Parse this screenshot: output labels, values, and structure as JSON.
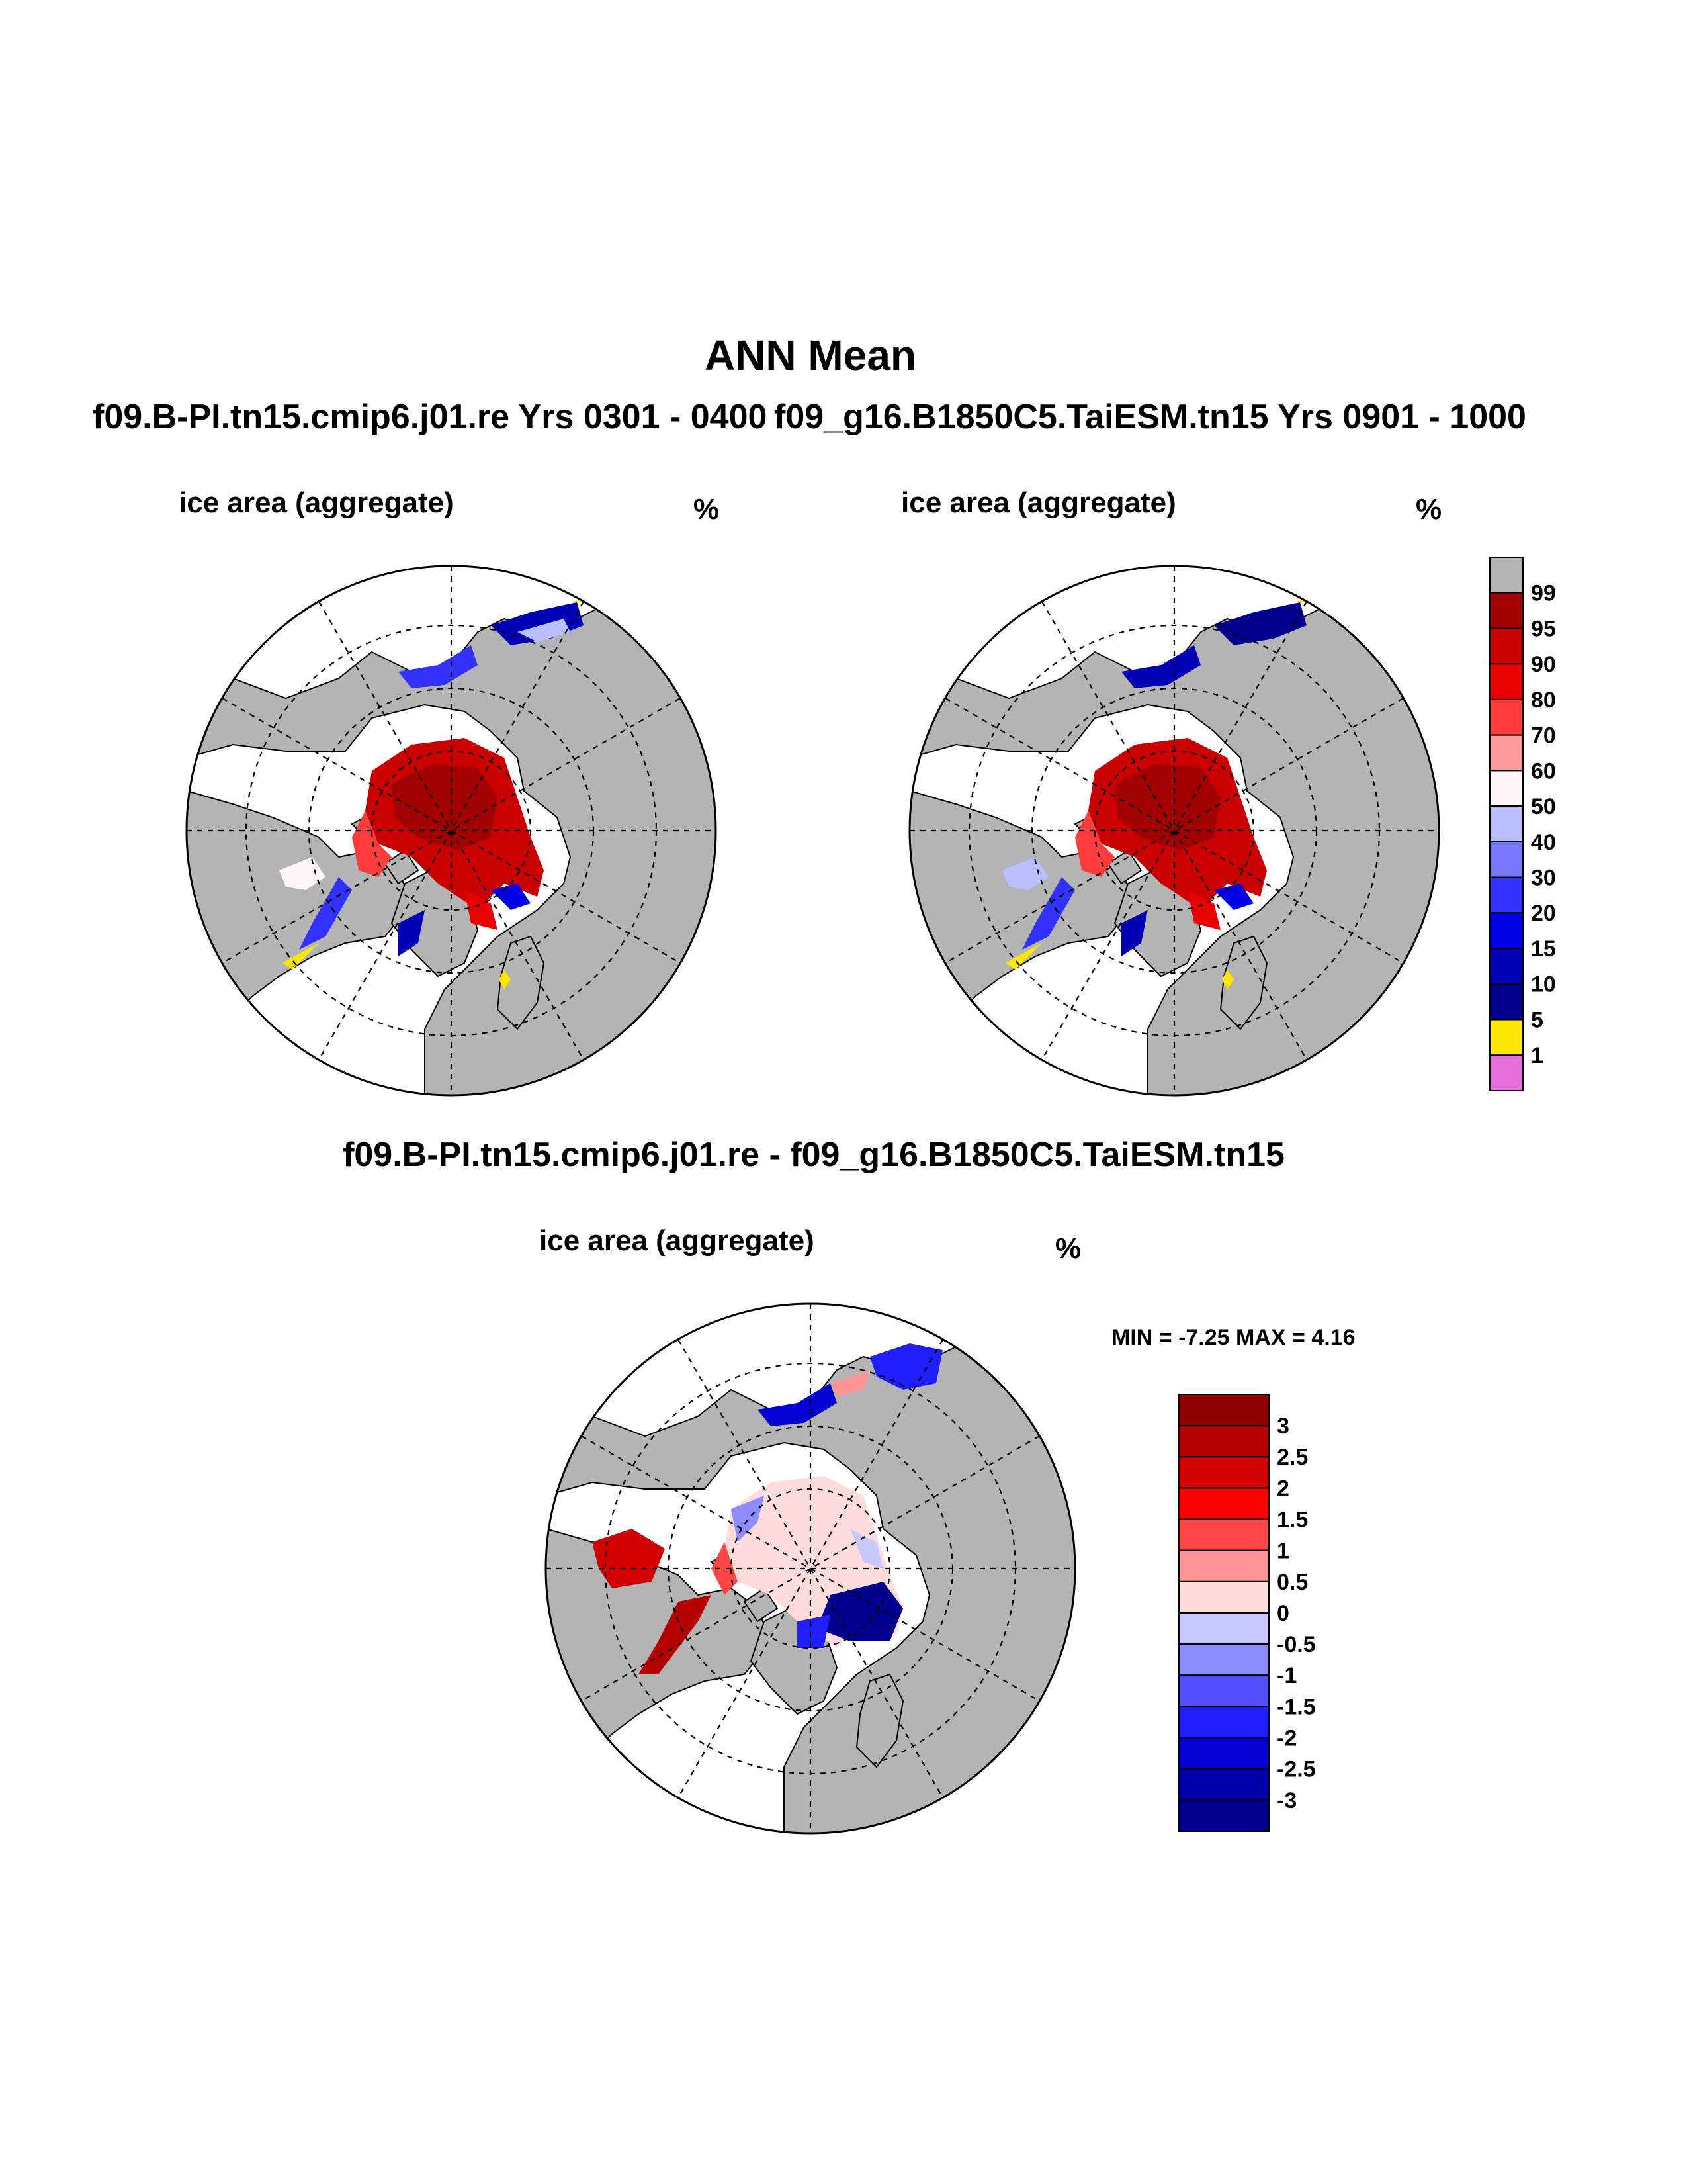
{
  "title": "ANN Mean",
  "panels": [
    {
      "id": "left",
      "header": "f09.B-PI.tn15.cmip6.j01.re  Yrs 0301 - 0400",
      "variable": "ice area  (aggregate)",
      "units": "%"
    },
    {
      "id": "right",
      "header": "f09_g16.B1850C5.TaiESM.tn15  Yrs 0901 - 1000",
      "variable": "ice area  (aggregate)",
      "units": "%"
    }
  ],
  "diff": {
    "header": "f09.B-PI.tn15.cmip6.j01.re - f09_g16.B1850C5.TaiESM.tn15",
    "variable": "ice area  (aggregate)",
    "units": "%",
    "min_max": "MIN =  -7.25 MAX =   4.16"
  },
  "colorbar_abs": {
    "labels": [
      "99",
      "95",
      "90",
      "80",
      "70",
      "60",
      "50",
      "40",
      "30",
      "20",
      "15",
      "10",
      "5",
      "1"
    ],
    "colors": [
      "#b4b4b4",
      "#a00000",
      "#c80000",
      "#e60000",
      "#ff3c3c",
      "#ff9a9a",
      "#fff6f6",
      "#b9bfff",
      "#7878ff",
      "#3232ff",
      "#0000e6",
      "#0000b4",
      "#00008c",
      "#ffe600",
      "#e66edc"
    ]
  },
  "colorbar_diff": {
    "labels": [
      "3",
      "2.5",
      "2",
      "1.5",
      "1",
      "0.5",
      "0",
      "-0.5",
      "-1",
      "-1.5",
      "-2",
      "-2.5",
      "-3"
    ],
    "colors": [
      "#8c0000",
      "#b40000",
      "#d20000",
      "#ff0000",
      "#ff4646",
      "#ff9696",
      "#ffdcdc",
      "#c8c8ff",
      "#8c8cff",
      "#5050ff",
      "#1e1eff",
      "#0000d2",
      "#0000aa",
      "#00008c"
    ]
  },
  "colors": {
    "land": "#b4b4b4",
    "ocean": "#ffffff"
  }
}
